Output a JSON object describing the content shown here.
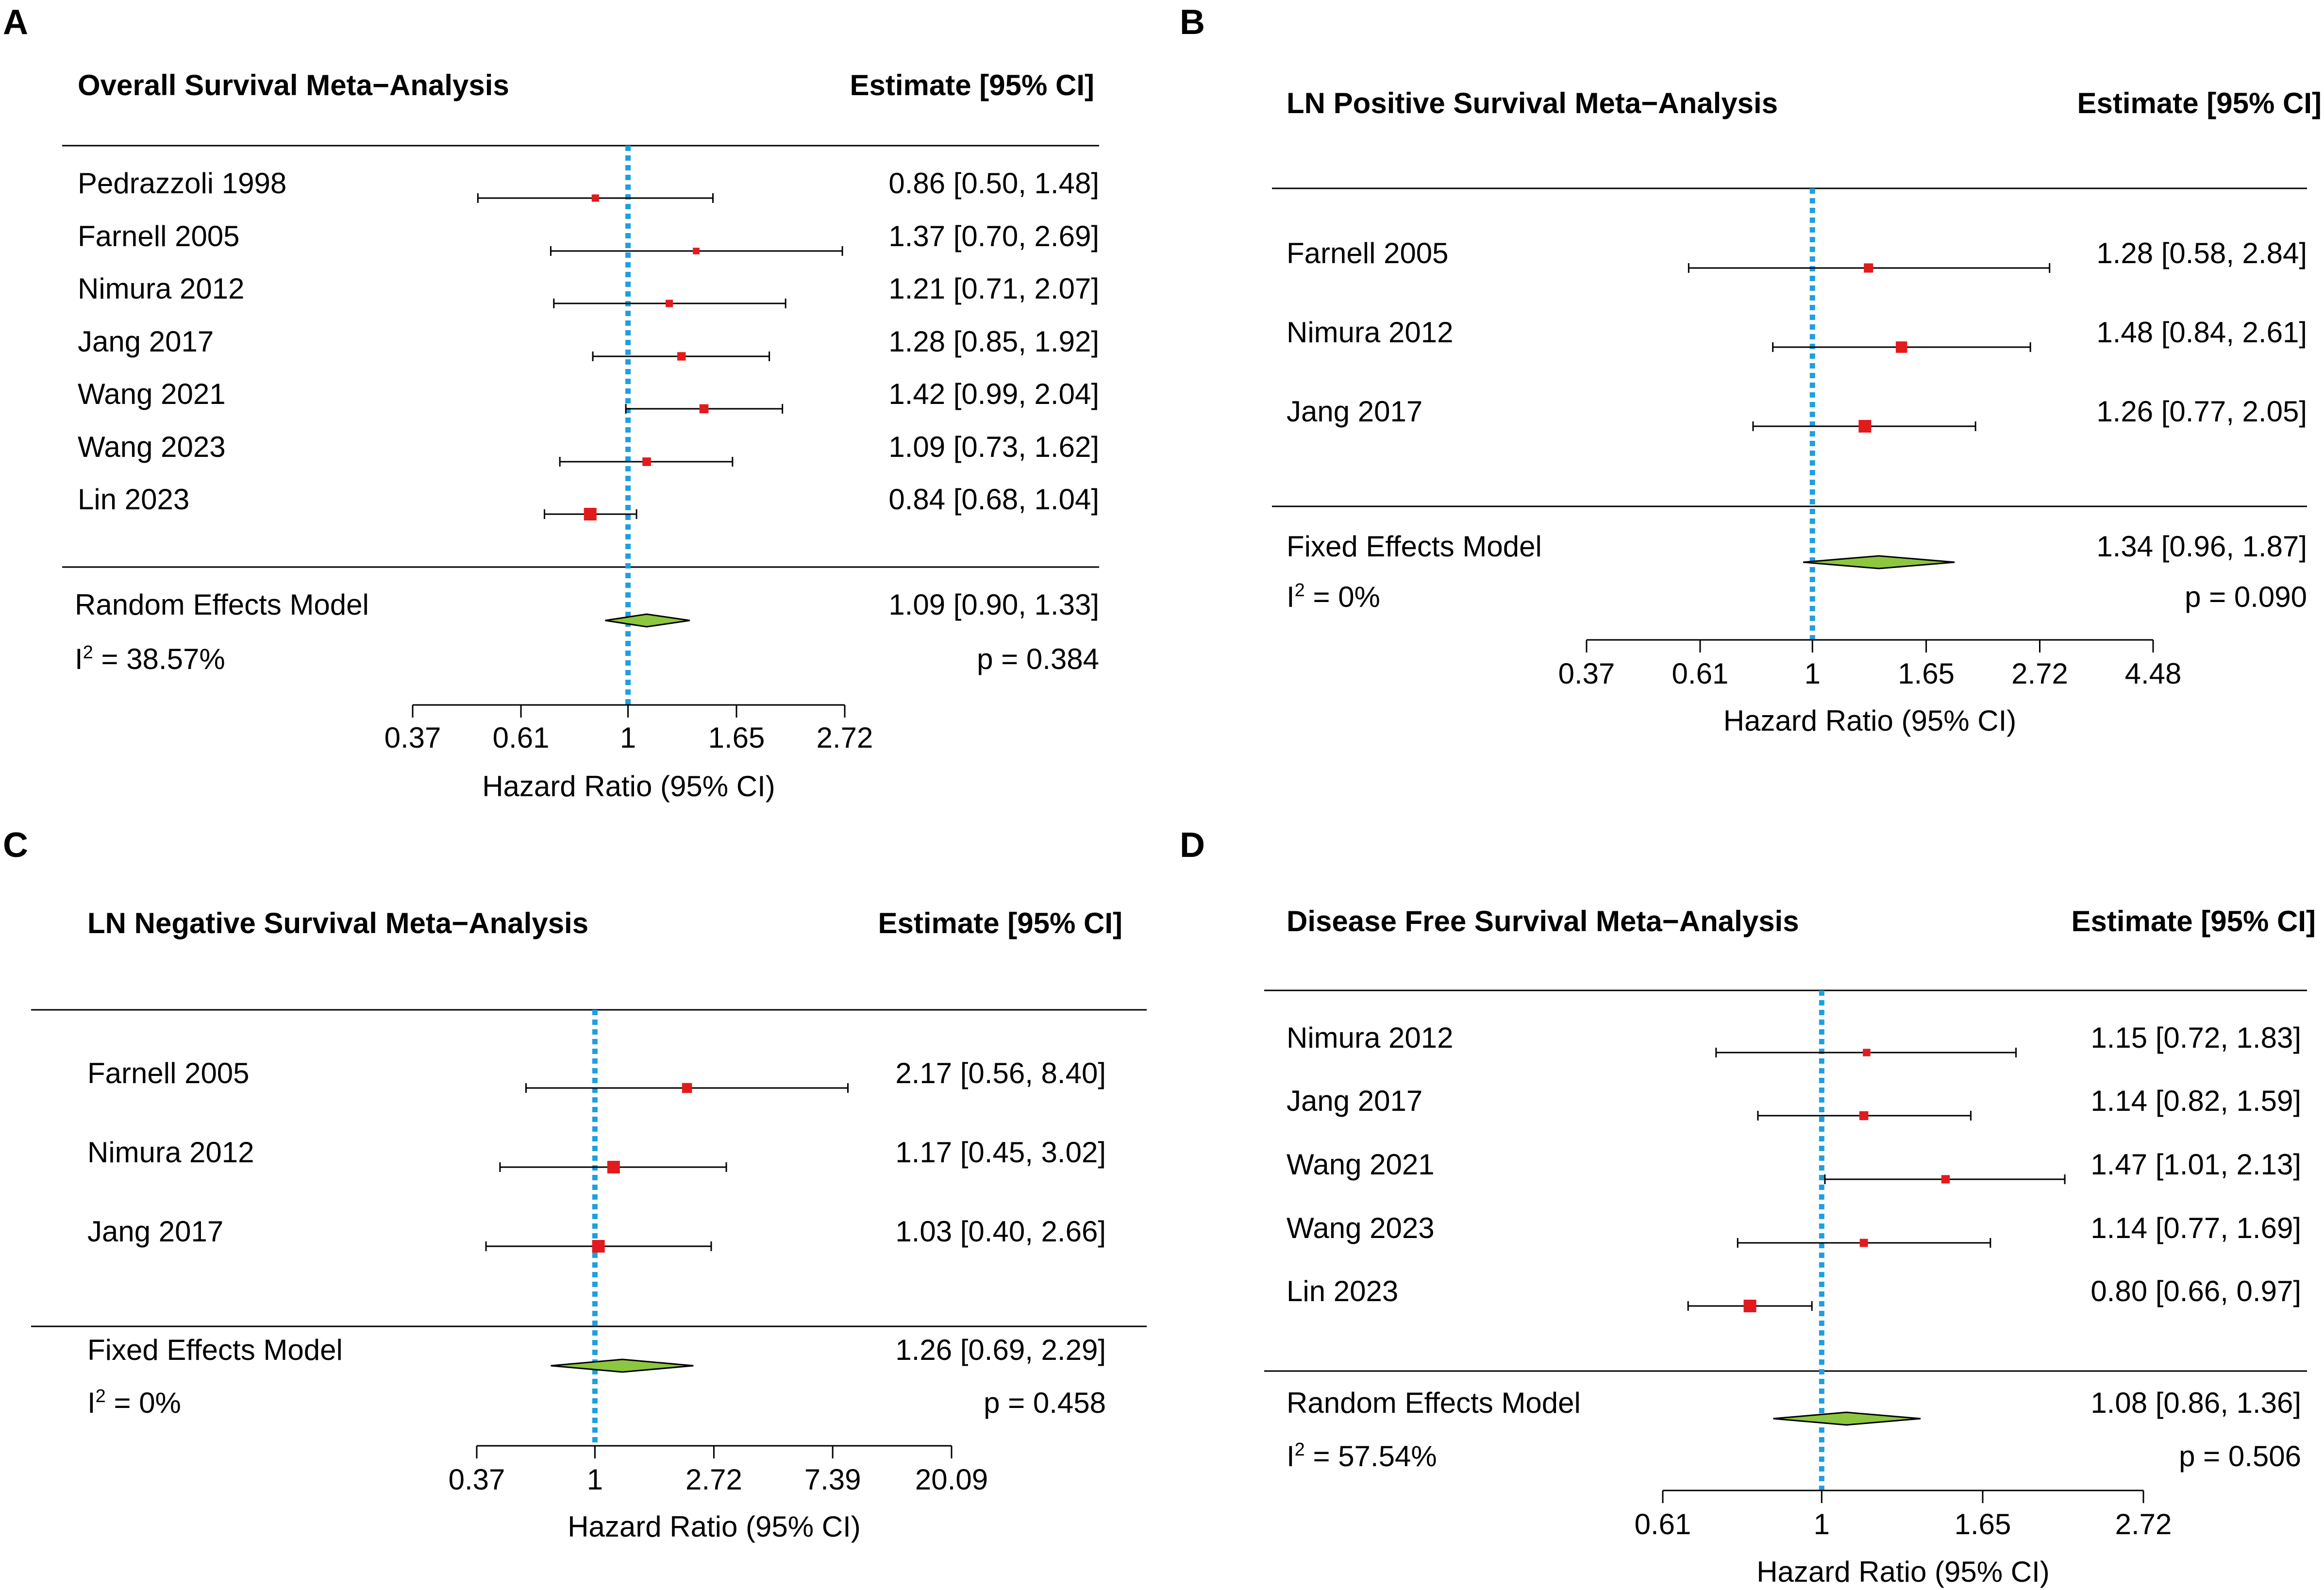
{
  "chart_data": [
    {
      "panel": "A",
      "type": "forest",
      "title": "Overall Survival Meta−Analysis",
      "estimate_header": "Estimate [95% CI]",
      "studies": [
        {
          "name": "Pedrazzoli 1998",
          "hr": 0.86,
          "lo": 0.5,
          "hi": 1.48,
          "label": "0.86 [0.50, 1.48]"
        },
        {
          "name": "Farnell 2005",
          "hr": 1.37,
          "lo": 0.7,
          "hi": 2.69,
          "label": "1.37 [0.70, 2.69]"
        },
        {
          "name": "Nimura 2012",
          "hr": 1.21,
          "lo": 0.71,
          "hi": 2.07,
          "label": "1.21 [0.71, 2.07]"
        },
        {
          "name": "Jang 2017",
          "hr": 1.28,
          "lo": 0.85,
          "hi": 1.92,
          "label": "1.28 [0.85, 1.92]"
        },
        {
          "name": "Wang 2021",
          "hr": 1.42,
          "lo": 0.99,
          "hi": 2.04,
          "label": "1.42 [0.99, 2.04]"
        },
        {
          "name": "Wang 2023",
          "hr": 1.09,
          "lo": 0.73,
          "hi": 1.62,
          "label": "1.09 [0.73, 1.62]"
        },
        {
          "name": "Lin 2023",
          "hr": 0.84,
          "lo": 0.68,
          "hi": 1.04,
          "label": "0.84 [0.68, 1.04]"
        }
      ],
      "model": {
        "name": "Random Effects Model",
        "hr": 1.09,
        "lo": 0.9,
        "hi": 1.33,
        "label": "1.09 [0.90, 1.33]"
      },
      "i2_prefix": "I",
      "i2_sup": "2",
      "i2_value": " = 38.57%",
      "p_text": "p = 0.384",
      "ticks": [
        {
          "value": 0.37,
          "label": "0.37"
        },
        {
          "value": 0.61,
          "label": "0.61"
        },
        {
          "value": 1,
          "label": "1"
        },
        {
          "value": 1.65,
          "label": "1.65"
        },
        {
          "value": 2.72,
          "label": "2.72"
        }
      ],
      "xlim": [
        0.37,
        2.72
      ],
      "xlabel": "Hazard Ratio (95% CI)",
      "ref_line": 1
    },
    {
      "panel": "B",
      "type": "forest",
      "title": "LN Positive Survival Meta−Analysis",
      "estimate_header": "Estimate [95% CI]",
      "studies": [
        {
          "name": "Farnell 2005",
          "hr": 1.28,
          "lo": 0.58,
          "hi": 2.84,
          "label": "1.28 [0.58, 2.84]"
        },
        {
          "name": "Nimura 2012",
          "hr": 1.48,
          "lo": 0.84,
          "hi": 2.61,
          "label": "1.48 [0.84, 2.61]"
        },
        {
          "name": "Jang 2017",
          "hr": 1.26,
          "lo": 0.77,
          "hi": 2.05,
          "label": "1.26 [0.77, 2.05]"
        }
      ],
      "model": {
        "name": "Fixed Effects Model",
        "hr": 1.34,
        "lo": 0.96,
        "hi": 1.87,
        "label": "1.34 [0.96, 1.87]"
      },
      "i2_prefix": "I",
      "i2_sup": "2",
      "i2_value": " = 0%",
      "p_text": "p = 0.090",
      "ticks": [
        {
          "value": 0.37,
          "label": "0.37"
        },
        {
          "value": 0.61,
          "label": "0.61"
        },
        {
          "value": 1,
          "label": "1"
        },
        {
          "value": 1.65,
          "label": "1.65"
        },
        {
          "value": 2.72,
          "label": "2.72"
        },
        {
          "value": 4.48,
          "label": "4.48"
        }
      ],
      "xlim": [
        0.37,
        4.48
      ],
      "xlabel": "Hazard Ratio (95% CI)",
      "ref_line": 1
    },
    {
      "panel": "C",
      "type": "forest",
      "title": "LN Negative Survival Meta−Analysis",
      "estimate_header": "Estimate [95% CI]",
      "studies": [
        {
          "name": "Farnell 2005",
          "hr": 2.17,
          "lo": 0.56,
          "hi": 8.4,
          "label": "2.17 [0.56, 8.40]"
        },
        {
          "name": "Nimura 2012",
          "hr": 1.17,
          "lo": 0.45,
          "hi": 3.02,
          "label": "1.17 [0.45, 3.02]"
        },
        {
          "name": "Jang 2017",
          "hr": 1.03,
          "lo": 0.4,
          "hi": 2.66,
          "label": "1.03 [0.40, 2.66]"
        }
      ],
      "model": {
        "name": "Fixed Effects Model",
        "hr": 1.26,
        "lo": 0.69,
        "hi": 2.29,
        "label": "1.26 [0.69, 2.29]"
      },
      "i2_prefix": "I",
      "i2_sup": "2",
      "i2_value": " = 0%",
      "p_text": "p = 0.458",
      "ticks": [
        {
          "value": 0.37,
          "label": "0.37"
        },
        {
          "value": 1,
          "label": "1"
        },
        {
          "value": 2.72,
          "label": "2.72"
        },
        {
          "value": 7.39,
          "label": "7.39"
        },
        {
          "value": 20.09,
          "label": "20.09"
        }
      ],
      "xlim": [
        0.37,
        20.09
      ],
      "xlabel": "Hazard Ratio (95% CI)",
      "ref_line": 1
    },
    {
      "panel": "D",
      "type": "forest",
      "title": "Disease Free Survival Meta−Analysis",
      "estimate_header": "Estimate [95% CI]",
      "studies": [
        {
          "name": "Nimura 2012",
          "hr": 1.15,
          "lo": 0.72,
          "hi": 1.83,
          "label": "1.15 [0.72, 1.83]"
        },
        {
          "name": "Jang 2017",
          "hr": 1.14,
          "lo": 0.82,
          "hi": 1.59,
          "label": "1.14 [0.82, 1.59]"
        },
        {
          "name": "Wang 2021",
          "hr": 1.47,
          "lo": 1.01,
          "hi": 2.13,
          "label": "1.47 [1.01, 2.13]"
        },
        {
          "name": "Wang 2023",
          "hr": 1.14,
          "lo": 0.77,
          "hi": 1.69,
          "label": "1.14 [0.77, 1.69]"
        },
        {
          "name": "Lin 2023",
          "hr": 0.8,
          "lo": 0.66,
          "hi": 0.97,
          "label": "0.80 [0.66, 0.97]"
        }
      ],
      "model": {
        "name": "Random Effects Model",
        "hr": 1.08,
        "lo": 0.86,
        "hi": 1.36,
        "label": "1.08 [0.86, 1.36]"
      },
      "i2_prefix": "I",
      "i2_sup": "2",
      "i2_value": " = 57.54%",
      "p_text": "p = 0.506",
      "ticks": [
        {
          "value": 0.61,
          "label": "0.61"
        },
        {
          "value": 1,
          "label": "1"
        },
        {
          "value": 1.65,
          "label": "1.65"
        },
        {
          "value": 2.72,
          "label": "2.72"
        }
      ],
      "xlim": [
        0.61,
        2.72
      ],
      "xlabel": "Hazard Ratio (95% CI)",
      "ref_line": 1
    }
  ],
  "colors": {
    "marker": "#e31a1c",
    "diamond_fill": "#8dc63f",
    "ref_line": "#1e9fe0",
    "axis": "#000000"
  }
}
